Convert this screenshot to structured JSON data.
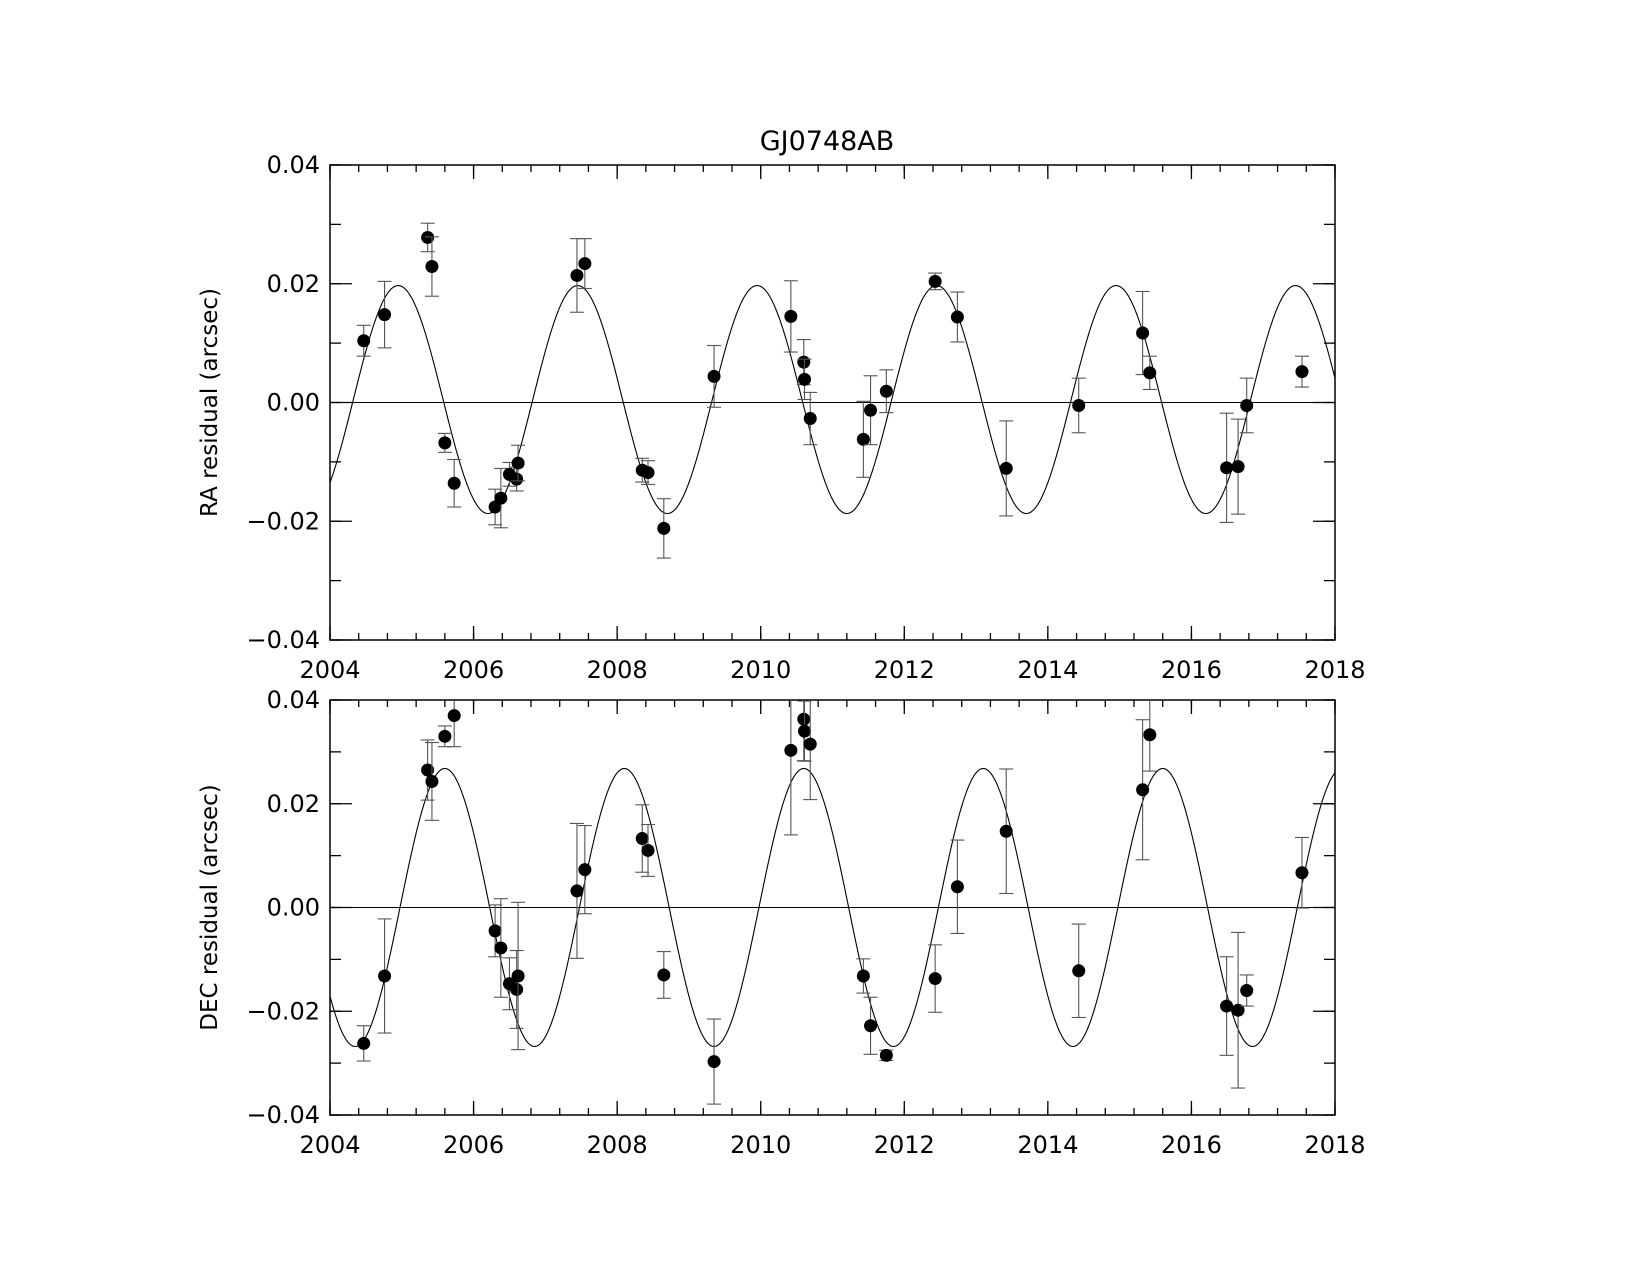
{
  "title": "GJ0748AB",
  "chart_data": [
    {
      "type": "scatter",
      "panel": "top",
      "ylabel": "RA residual (arcsec)",
      "xlabel": "",
      "xlim": [
        2004,
        2018
      ],
      "ylim": [
        -0.04,
        0.04
      ],
      "x_ticks": [
        "2004",
        "2006",
        "2008",
        "2010",
        "2012",
        "2014",
        "2016",
        "2018"
      ],
      "y_ticks": [
        "−0.04",
        "−0.02",
        "0.00",
        "0.02",
        "0.04"
      ],
      "y_tick_values": [
        -0.04,
        -0.02,
        0.0,
        0.02,
        0.04
      ],
      "x_tick_values": [
        2004,
        2006,
        2008,
        2010,
        2012,
        2014,
        2016,
        2018
      ],
      "zero_line": 0,
      "model": {
        "amplitude": 0.0192,
        "offset": 0.0005,
        "period": 2.5,
        "phase_ref": 2004.95
      },
      "points": [
        {
          "x": 2004.47,
          "y": 0.0104,
          "err": 0.0026
        },
        {
          "x": 2004.76,
          "y": 0.0148,
          "err": 0.0056
        },
        {
          "x": 2005.36,
          "y": 0.0278,
          "err": 0.0024
        },
        {
          "x": 2005.42,
          "y": 0.0229,
          "err": 0.005
        },
        {
          "x": 2005.6,
          "y": -0.0068,
          "err": 0.0016
        },
        {
          "x": 2005.73,
          "y": -0.0136,
          "err": 0.004
        },
        {
          "x": 2006.3,
          "y": -0.0176,
          "err": 0.003
        },
        {
          "x": 2006.38,
          "y": -0.0161,
          "err": 0.005
        },
        {
          "x": 2006.5,
          "y": -0.0121,
          "err": 0.002
        },
        {
          "x": 2006.6,
          "y": -0.0129,
          "err": 0.002
        },
        {
          "x": 2006.62,
          "y": -0.0102,
          "err": 0.003
        },
        {
          "x": 2007.44,
          "y": 0.0214,
          "err": 0.0062
        },
        {
          "x": 2007.55,
          "y": 0.0234,
          "err": 0.0042
        },
        {
          "x": 2008.35,
          "y": -0.0114,
          "err": 0.002
        },
        {
          "x": 2008.43,
          "y": -0.0118,
          "err": 0.002
        },
        {
          "x": 2008.65,
          "y": -0.0212,
          "err": 0.005
        },
        {
          "x": 2009.35,
          "y": 0.0044,
          "err": 0.0052
        },
        {
          "x": 2010.42,
          "y": 0.0145,
          "err": 0.006
        },
        {
          "x": 2010.6,
          "y": 0.0068,
          "err": 0.0038
        },
        {
          "x": 2010.61,
          "y": 0.0039,
          "err": 0.0034
        },
        {
          "x": 2010.69,
          "y": -0.0027,
          "err": 0.0044
        },
        {
          "x": 2011.43,
          "y": -0.0062,
          "err": 0.0064
        },
        {
          "x": 2011.53,
          "y": -0.0013,
          "err": 0.0058
        },
        {
          "x": 2011.75,
          "y": 0.0019,
          "err": 0.0036
        },
        {
          "x": 2012.43,
          "y": 0.0204,
          "err": 0.0014
        },
        {
          "x": 2012.74,
          "y": 0.0144,
          "err": 0.0042
        },
        {
          "x": 2013.42,
          "y": -0.0111,
          "err": 0.008
        },
        {
          "x": 2014.43,
          "y": -0.0005,
          "err": 0.0046
        },
        {
          "x": 2015.32,
          "y": 0.0117,
          "err": 0.007
        },
        {
          "x": 2015.42,
          "y": 0.005,
          "err": 0.0028
        },
        {
          "x": 2016.49,
          "y": -0.011,
          "err": 0.0092
        },
        {
          "x": 2016.65,
          "y": -0.0108,
          "err": 0.008
        },
        {
          "x": 2016.77,
          "y": -0.0005,
          "err": 0.0046
        },
        {
          "x": 2017.54,
          "y": 0.0052,
          "err": 0.0026
        }
      ]
    },
    {
      "type": "scatter",
      "panel": "bottom",
      "ylabel": "DEC residual (arcsec)",
      "xlabel": "",
      "xlim": [
        2004,
        2018
      ],
      "ylim": [
        -0.04,
        0.04
      ],
      "x_ticks": [
        "2004",
        "2006",
        "2008",
        "2010",
        "2012",
        "2014",
        "2016",
        "2018"
      ],
      "y_ticks": [
        "−0.04",
        "−0.02",
        "0.00",
        "0.02",
        "0.04"
      ],
      "y_tick_values": [
        -0.04,
        -0.02,
        0.0,
        0.02,
        0.04
      ],
      "x_tick_values": [
        2004,
        2006,
        2008,
        2010,
        2012,
        2014,
        2016,
        2018
      ],
      "zero_line": 0,
      "model": {
        "amplitude": 0.0268,
        "offset": 0.0,
        "period": 2.5,
        "phase_ref": 2005.6
      },
      "points": [
        {
          "x": 2004.47,
          "y": -0.0262,
          "err": 0.0034
        },
        {
          "x": 2004.76,
          "y": -0.0132,
          "err": 0.011
        },
        {
          "x": 2005.36,
          "y": 0.0265,
          "err": 0.0058
        },
        {
          "x": 2005.42,
          "y": 0.0243,
          "err": 0.0075
        },
        {
          "x": 2005.6,
          "y": 0.033,
          "err": 0.002
        },
        {
          "x": 2005.73,
          "y": 0.037,
          "err": 0.006
        },
        {
          "x": 2006.3,
          "y": -0.0045,
          "err": 0.005
        },
        {
          "x": 2006.38,
          "y": -0.0078,
          "err": 0.0095
        },
        {
          "x": 2006.5,
          "y": -0.0147,
          "err": 0.005
        },
        {
          "x": 2006.6,
          "y": -0.0158,
          "err": 0.0075
        },
        {
          "x": 2006.62,
          "y": -0.0132,
          "err": 0.0142
        },
        {
          "x": 2007.44,
          "y": 0.0032,
          "err": 0.013
        },
        {
          "x": 2007.55,
          "y": 0.0073,
          "err": 0.0085
        },
        {
          "x": 2008.35,
          "y": 0.0133,
          "err": 0.0065
        },
        {
          "x": 2008.43,
          "y": 0.011,
          "err": 0.005
        },
        {
          "x": 2008.65,
          "y": -0.013,
          "err": 0.0045
        },
        {
          "x": 2009.35,
          "y": -0.0297,
          "err": 0.0082
        },
        {
          "x": 2010.42,
          "y": 0.0303,
          "err": 0.0163
        },
        {
          "x": 2010.6,
          "y": 0.0363,
          "err": 0.008
        },
        {
          "x": 2010.61,
          "y": 0.034,
          "err": 0.0058
        },
        {
          "x": 2010.69,
          "y": 0.0315,
          "err": 0.0107
        },
        {
          "x": 2011.43,
          "y": -0.0132,
          "err": 0.0033
        },
        {
          "x": 2011.53,
          "y": -0.0228,
          "err": 0.0055
        },
        {
          "x": 2011.75,
          "y": -0.0285,
          "err": 0.001
        },
        {
          "x": 2012.43,
          "y": -0.0137,
          "err": 0.0065
        },
        {
          "x": 2012.74,
          "y": 0.004,
          "err": 0.009
        },
        {
          "x": 2013.42,
          "y": 0.0147,
          "err": 0.012
        },
        {
          "x": 2014.43,
          "y": -0.0122,
          "err": 0.009
        },
        {
          "x": 2015.32,
          "y": 0.0227,
          "err": 0.0135
        },
        {
          "x": 2015.42,
          "y": 0.0333,
          "err": 0.007
        },
        {
          "x": 2016.49,
          "y": -0.019,
          "err": 0.0095
        },
        {
          "x": 2016.65,
          "y": -0.0198,
          "err": 0.015
        },
        {
          "x": 2016.77,
          "y": -0.016,
          "err": 0.003
        },
        {
          "x": 2017.54,
          "y": 0.0067,
          "err": 0.0068
        }
      ]
    }
  ]
}
